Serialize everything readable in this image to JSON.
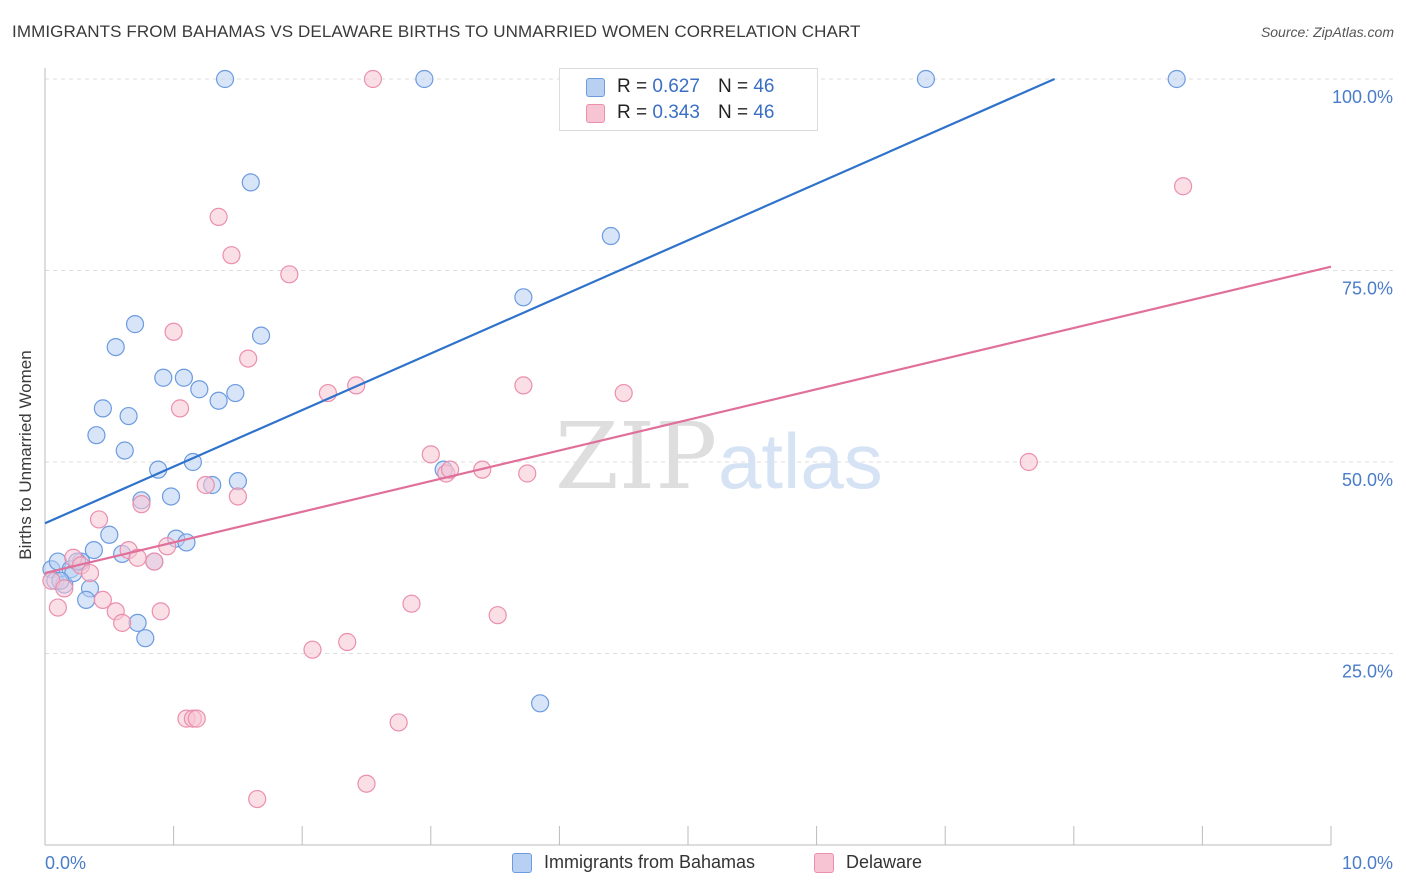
{
  "header": {
    "title": "IMMIGRANTS FROM BAHAMAS VS DELAWARE BIRTHS TO UNMARRIED WOMEN CORRELATION CHART",
    "source": "Source: ZipAtlas.com"
  },
  "watermark": {
    "part1": "ZIP",
    "part2": "atlas"
  },
  "legend_top": {
    "rows": [
      {
        "r_label": "R =",
        "r_value": "0.627",
        "n_label": "N =",
        "n_value": "46"
      },
      {
        "r_label": "R =",
        "r_value": "0.343",
        "n_label": "N =",
        "n_value": "46"
      }
    ]
  },
  "legend_bottom": {
    "items": [
      {
        "label": "Immigrants from Bahamas"
      },
      {
        "label": "Delaware"
      }
    ]
  },
  "colors": {
    "blue_fill": "#b8d0f2",
    "blue_stroke": "#6c9be0",
    "blue_line": "#2e72cc",
    "pink_fill": "#f7c4d3",
    "pink_stroke": "#eb8fad",
    "pink_line": "#e0709a",
    "grid": "#dddddd",
    "tick_text": "#4a7cc9"
  },
  "chart_data": {
    "type": "scatter",
    "title": "IMMIGRANTS FROM BAHAMAS VS DELAWARE BIRTHS TO UNMARRIED WOMEN CORRELATION CHART",
    "xlabel": "",
    "ylabel": "Births to Unmarried Women",
    "xlim": [
      0,
      10
    ],
    "ylim": [
      0,
      100
    ],
    "x_tick_labels": [
      "0.0%",
      "10.0%"
    ],
    "y_ticks": [
      25,
      50,
      75,
      100
    ],
    "y_tick_labels": [
      "25.0%",
      "50.0%",
      "75.0%",
      "100.0%"
    ],
    "grid": true,
    "legend_position": "top-center",
    "series": [
      {
        "name": "Immigrants from Bahamas",
        "color": "#6c9be0",
        "points": [
          [
            0.05,
            36.0
          ],
          [
            0.08,
            34.5
          ],
          [
            0.1,
            37.0
          ],
          [
            0.15,
            34.0
          ],
          [
            0.2,
            36.0
          ],
          [
            0.22,
            35.5
          ],
          [
            0.28,
            37.0
          ],
          [
            0.35,
            33.5
          ],
          [
            0.38,
            38.5
          ],
          [
            0.45,
            57.0
          ],
          [
            0.4,
            53.5
          ],
          [
            0.25,
            37.0
          ],
          [
            0.55,
            65.0
          ],
          [
            0.6,
            38.0
          ],
          [
            0.62,
            51.5
          ],
          [
            0.7,
            68.0
          ],
          [
            0.65,
            56.0
          ],
          [
            0.75,
            45.0
          ],
          [
            0.78,
            27.0
          ],
          [
            0.72,
            29.0
          ],
          [
            0.5,
            40.5
          ],
          [
            0.85,
            37.0
          ],
          [
            0.88,
            49.0
          ],
          [
            0.92,
            61.0
          ],
          [
            0.98,
            45.5
          ],
          [
            1.02,
            40.0
          ],
          [
            1.08,
            61.0
          ],
          [
            1.1,
            39.5
          ],
          [
            1.15,
            50.0
          ],
          [
            1.2,
            59.5
          ],
          [
            1.3,
            47.0
          ],
          [
            1.35,
            58.0
          ],
          [
            1.48,
            59.0
          ],
          [
            1.5,
            47.5
          ],
          [
            1.6,
            86.5
          ],
          [
            1.68,
            66.5
          ],
          [
            3.72,
            71.5
          ],
          [
            3.85,
            18.5
          ],
          [
            4.4,
            79.5
          ],
          [
            1.4,
            100.0
          ],
          [
            2.95,
            100.0
          ],
          [
            6.85,
            100.0
          ],
          [
            8.8,
            100.0
          ],
          [
            3.1,
            49.0
          ],
          [
            0.32,
            32.0
          ],
          [
            0.12,
            34.5
          ]
        ]
      },
      {
        "name": "Delaware",
        "color": "#eb8fad",
        "points": [
          [
            0.05,
            34.5
          ],
          [
            0.1,
            31.0
          ],
          [
            0.15,
            33.5
          ],
          [
            0.22,
            37.5
          ],
          [
            0.28,
            36.5
          ],
          [
            0.35,
            35.5
          ],
          [
            0.42,
            42.5
          ],
          [
            0.45,
            32.0
          ],
          [
            0.55,
            30.5
          ],
          [
            0.6,
            29.0
          ],
          [
            0.65,
            38.5
          ],
          [
            0.72,
            37.5
          ],
          [
            0.75,
            44.5
          ],
          [
            0.85,
            37.0
          ],
          [
            0.9,
            30.5
          ],
          [
            0.95,
            39.0
          ],
          [
            1.0,
            67.0
          ],
          [
            1.05,
            57.0
          ],
          [
            1.1,
            16.5
          ],
          [
            1.15,
            16.5
          ],
          [
            1.18,
            16.5
          ],
          [
            1.25,
            47.0
          ],
          [
            1.35,
            82.0
          ],
          [
            1.45,
            77.0
          ],
          [
            1.5,
            45.5
          ],
          [
            1.58,
            63.5
          ],
          [
            1.65,
            6.0
          ],
          [
            1.9,
            74.5
          ],
          [
            2.08,
            25.5
          ],
          [
            2.2,
            59.0
          ],
          [
            2.35,
            26.5
          ],
          [
            2.42,
            60.0
          ],
          [
            2.5,
            8.0
          ],
          [
            2.55,
            100.0
          ],
          [
            2.75,
            16.0
          ],
          [
            2.85,
            31.5
          ],
          [
            3.0,
            51.0
          ],
          [
            3.12,
            48.5
          ],
          [
            3.15,
            49.0
          ],
          [
            3.4,
            49.0
          ],
          [
            3.52,
            30.0
          ],
          [
            3.75,
            48.5
          ],
          [
            3.72,
            60.0
          ],
          [
            4.5,
            59.0
          ],
          [
            7.65,
            50.0
          ],
          [
            8.85,
            86.0
          ]
        ]
      }
    ],
    "trendlines": [
      {
        "series": "Immigrants from Bahamas",
        "x": [
          0,
          7.85
        ],
        "y": [
          42.0,
          100.0
        ]
      },
      {
        "series": "Delaware",
        "x": [
          0,
          10
        ],
        "y": [
          35.5,
          75.5
        ]
      }
    ]
  }
}
